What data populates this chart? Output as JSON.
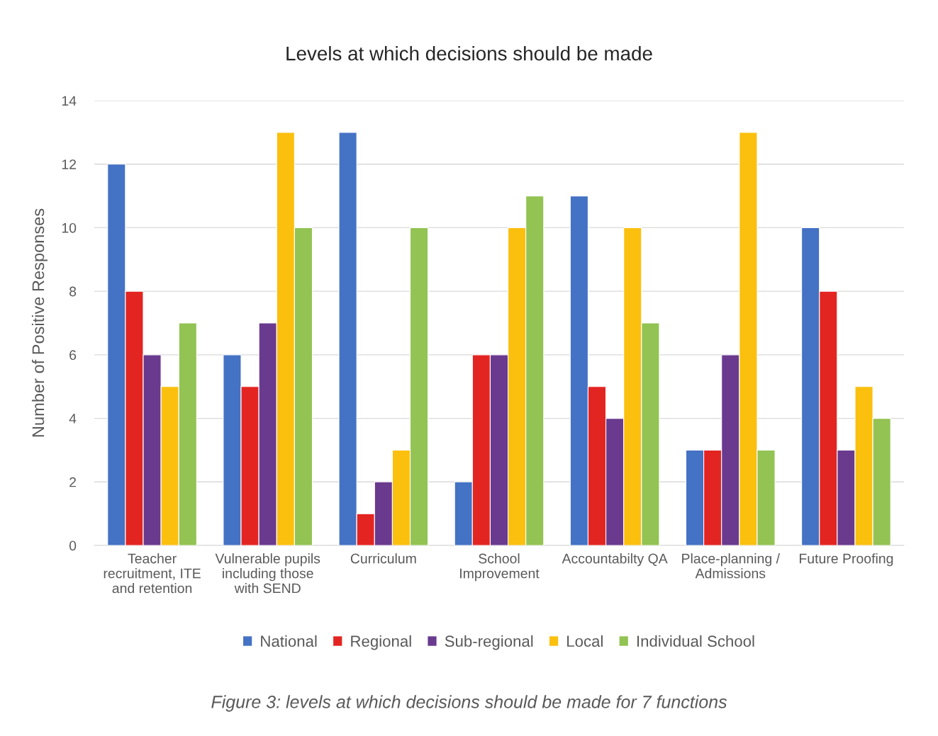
{
  "chart_data": {
    "type": "bar",
    "title": "Levels at which decisions should be made",
    "ylabel": "Number of Positive Responses",
    "categories": [
      "Teacher\nrecruitment, ITE\nand retention",
      "Vulnerable pupils\nincluding those\nwith SEND",
      "Curriculum",
      "School\nImprovement",
      "Accountabilty QA",
      "Place-planning /\nAdmissions",
      "Future Proofing"
    ],
    "series": [
      {
        "name": "National",
        "color": "#4472c4",
        "values": [
          12,
          6,
          13,
          2,
          11,
          3,
          10
        ]
      },
      {
        "name": "Regional",
        "color": "#e32522",
        "values": [
          8,
          5,
          1,
          6,
          5,
          3,
          8
        ]
      },
      {
        "name": "Sub-regional",
        "color": "#6a3a8f",
        "values": [
          6,
          7,
          2,
          6,
          4,
          6,
          3
        ]
      },
      {
        "name": "Local",
        "color": "#fbbf0e",
        "values": [
          5,
          13,
          3,
          10,
          10,
          13,
          5
        ]
      },
      {
        "name": "Individual School",
        "color": "#92c353",
        "values": [
          7,
          10,
          10,
          11,
          7,
          3,
          4
        ]
      }
    ],
    "ylim": [
      0,
      14
    ],
    "yticks": [
      0,
      2,
      4,
      6,
      8,
      10,
      12,
      14
    ],
    "grid": "y",
    "legend": "bottom",
    "annotations": [
      "Figure 3: levels at which decisions should be made for 7 functions"
    ]
  }
}
